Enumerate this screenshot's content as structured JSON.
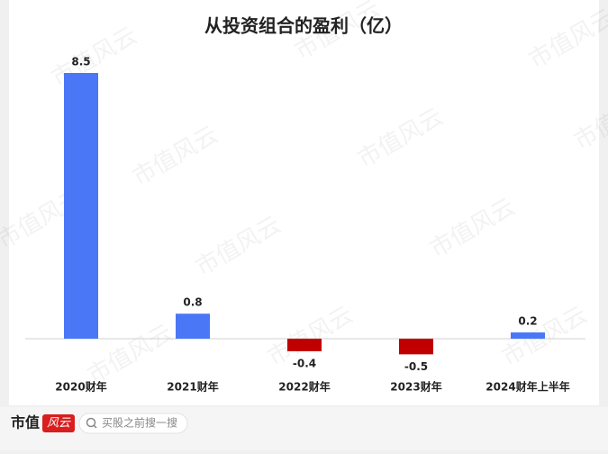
{
  "chart_data": {
    "type": "bar",
    "title": "从投资组合的盈利（亿）",
    "categories": [
      "2020财年",
      "2021财年",
      "2022财年",
      "2023财年",
      "2024财年上半年"
    ],
    "values": [
      8.5,
      0.8,
      -0.4,
      -0.5,
      0.2
    ],
    "colors": [
      "#4a77f6",
      "#4a77f6",
      "#c00000",
      "#c00000",
      "#4a77f6"
    ],
    "watermark": "市值风云"
  },
  "footer": {
    "logo_text": "市值",
    "logo_badge": "风云",
    "search_placeholder": "买股之前搜一搜"
  }
}
